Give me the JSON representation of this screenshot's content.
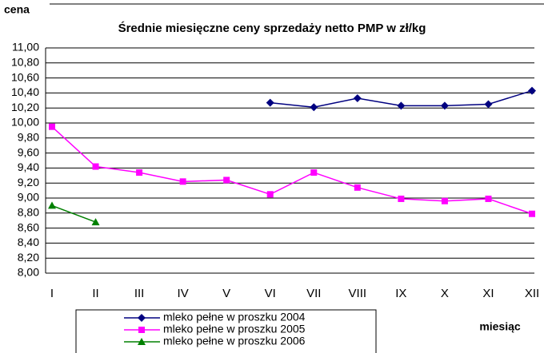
{
  "chart_data": {
    "type": "line",
    "title": "Średnie miesięczne ceny sprzedaży netto PMP w zł/kg",
    "y_label": "cena",
    "x_label": "miesiąc",
    "categories": [
      "I",
      "II",
      "III",
      "IV",
      "V",
      "VI",
      "VII",
      "VIII",
      "IX",
      "X",
      "XI",
      "XII"
    ],
    "series": [
      {
        "name": "mleko pełne w proszku 2004",
        "color": "#000080",
        "marker": "diamond",
        "values": [
          null,
          null,
          null,
          null,
          null,
          10.27,
          10.21,
          10.33,
          10.23,
          10.23,
          10.25,
          10.43
        ]
      },
      {
        "name": "mleko pełne w proszku 2005",
        "color": "#ff00ff",
        "marker": "square",
        "values": [
          9.95,
          9.42,
          9.34,
          9.22,
          9.24,
          9.05,
          9.34,
          9.14,
          8.99,
          8.96,
          8.99,
          8.79
        ]
      },
      {
        "name": "mleko pełne w proszku 2006",
        "color": "#008000",
        "marker": "triangle",
        "values": [
          8.9,
          8.68,
          null,
          null,
          null,
          null,
          null,
          null,
          null,
          null,
          null,
          null
        ]
      }
    ],
    "ylim": [
      8,
      11
    ],
    "yticks": [
      {
        "value": 8,
        "label": "8,00"
      },
      {
        "value": 8.2,
        "label": "8,20"
      },
      {
        "value": 8.4,
        "label": "8,40"
      },
      {
        "value": 8.6,
        "label": "8,60"
      },
      {
        "value": 8.8,
        "label": "8,80"
      },
      {
        "value": 9,
        "label": "9,00"
      },
      {
        "value": 9.2,
        "label": "9,20"
      },
      {
        "value": 9.4,
        "label": "9,40"
      },
      {
        "value": 9.6,
        "label": "9,60"
      },
      {
        "value": 9.8,
        "label": "9,80"
      },
      {
        "value": 10,
        "label": "10,00"
      },
      {
        "value": 10.2,
        "label": "10,20"
      },
      {
        "value": 10.4,
        "label": "10,40"
      },
      {
        "value": 10.6,
        "label": "10,60"
      },
      {
        "value": 10.8,
        "label": "10,80"
      },
      {
        "value": 11,
        "label": "11,00"
      }
    ],
    "grid": true
  }
}
